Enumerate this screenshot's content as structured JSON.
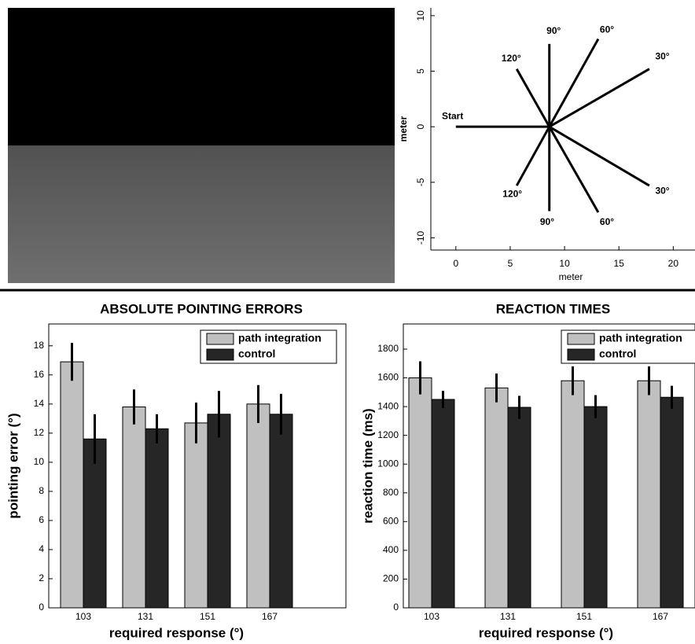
{
  "chart_data": [
    {
      "type": "line",
      "xlabel": "meter",
      "ylabel": "meter",
      "xlim": [
        -2.3,
        22
      ],
      "ylim": [
        -11.1,
        10.7
      ],
      "xticks": [
        0,
        5,
        10,
        15,
        20
      ],
      "yticks": [
        -10,
        -5,
        0,
        5,
        10
      ],
      "color": "#000000",
      "series": [
        {
          "x": [
            0,
            8.6
          ],
          "values": [
            0,
            0
          ]
        },
        {
          "x": [
            8.6,
            17.8
          ],
          "values": [
            0,
            5.2
          ]
        },
        {
          "x": [
            8.6,
            13.1
          ],
          "values": [
            0,
            7.9
          ]
        },
        {
          "x": [
            8.6,
            8.6
          ],
          "values": [
            0,
            7.45
          ]
        },
        {
          "x": [
            8.6,
            5.6
          ],
          "values": [
            0,
            5.2
          ]
        },
        {
          "x": [
            8.6,
            17.8
          ],
          "values": [
            0,
            -5.3
          ]
        },
        {
          "x": [
            8.6,
            13.1
          ],
          "values": [
            0,
            -7.7
          ]
        },
        {
          "x": [
            8.6,
            8.6
          ],
          "values": [
            0,
            -7.6
          ]
        },
        {
          "x": [
            8.6,
            5.6
          ],
          "values": [
            0,
            -5.3
          ]
        }
      ],
      "annotations": [
        {
          "text": "Start",
          "x": -0.3,
          "y": 0.9
        },
        {
          "text": "90°",
          "x": 9.0,
          "y": 8.6
        },
        {
          "text": "60°",
          "x": 13.9,
          "y": 8.7
        },
        {
          "text": "30°",
          "x": 19.0,
          "y": 6.3
        },
        {
          "text": "120°",
          "x": 5.1,
          "y": 6.1
        },
        {
          "text": "120°",
          "x": 5.2,
          "y": -6.1
        },
        {
          "text": "90°",
          "x": 8.4,
          "y": -8.6
        },
        {
          "text": "60°",
          "x": 13.9,
          "y": -8.6
        },
        {
          "text": "30°",
          "x": 19.0,
          "y": -5.8
        }
      ]
    },
    {
      "type": "bar",
      "title": "ABSOLUTE POINTING ERRORS",
      "xlabel": "required response (°)",
      "ylabel": "pointing error (°)",
      "categories": [
        "103",
        "131",
        "151",
        "167"
      ],
      "ylim": [
        0,
        19.5
      ],
      "yticks": [
        0,
        2,
        4,
        6,
        8,
        10,
        12,
        14,
        16,
        18
      ],
      "legend": "upper right",
      "series": [
        {
          "name": "path integration",
          "color": "#c0c0c0",
          "values": [
            16.9,
            13.8,
            12.7,
            14.0
          ],
          "errors": [
            1.3,
            1.2,
            1.4,
            1.3
          ]
        },
        {
          "name": "control",
          "color": "#262626",
          "values": [
            11.6,
            12.3,
            13.3,
            13.3
          ],
          "errors": [
            1.7,
            1.0,
            1.6,
            1.4
          ]
        }
      ]
    },
    {
      "type": "bar",
      "title": "REACTION TIMES",
      "xlabel": "required response (°)",
      "ylabel": "reaction time (ms)",
      "categories": [
        "103",
        "131",
        "151",
        "167"
      ],
      "ylim": [
        0,
        1975
      ],
      "yticks": [
        0,
        200,
        400,
        600,
        800,
        1000,
        1200,
        1400,
        1600,
        1800
      ],
      "legend": "upper right",
      "series": [
        {
          "name": "path integration",
          "color": "#c0c0c0",
          "values": [
            1600,
            1530,
            1580,
            1580
          ],
          "errors": [
            115,
            100,
            100,
            100
          ]
        },
        {
          "name": "control",
          "color": "#262626",
          "values": [
            1450,
            1395,
            1400,
            1465
          ],
          "errors": [
            60,
            80,
            80,
            80
          ]
        }
      ]
    }
  ]
}
